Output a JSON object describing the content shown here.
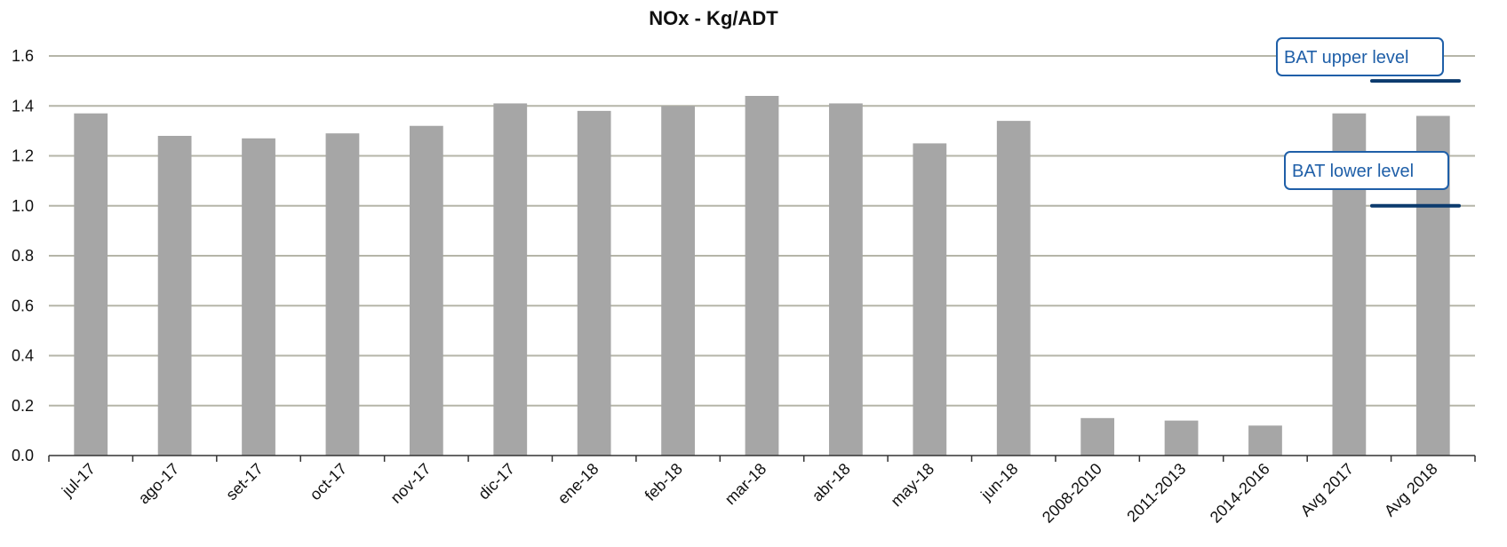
{
  "chart_data": {
    "type": "bar",
    "title": "NOx - Kg/ADT",
    "xlabel": "",
    "ylabel": "",
    "ylim": [
      0,
      1.6
    ],
    "yticks": [
      "0.0",
      "0.2",
      "0.4",
      "0.6",
      "0.8",
      "1.0",
      "1.2",
      "1.4",
      "1.6"
    ],
    "grid": true,
    "categories": [
      "jul-17",
      "ago-17",
      "set-17",
      "oct-17",
      "nov-17",
      "dic-17",
      "ene-18",
      "feb-18",
      "mar-18",
      "abr-18",
      "may-18",
      "jun-18",
      "2008-2010",
      "2011-2013",
      "2014-2016",
      "Avg 2017",
      "Avg 2018"
    ],
    "values": [
      1.37,
      1.28,
      1.27,
      1.29,
      1.32,
      1.41,
      1.38,
      1.4,
      1.44,
      1.41,
      1.25,
      1.34,
      0.15,
      0.14,
      0.12,
      1.37,
      1.36
    ],
    "bar_color": "#a6a6a6",
    "grid_color": "#b5b5a8",
    "reference_lines": [
      {
        "label": "BAT upper level",
        "value": 1.5,
        "color": "#0c3b6e",
        "text_color": "#1f5fa8"
      },
      {
        "label": "BAT lower level",
        "value": 1.0,
        "color": "#0c3b6e",
        "text_color": "#1f5fa8"
      }
    ]
  }
}
